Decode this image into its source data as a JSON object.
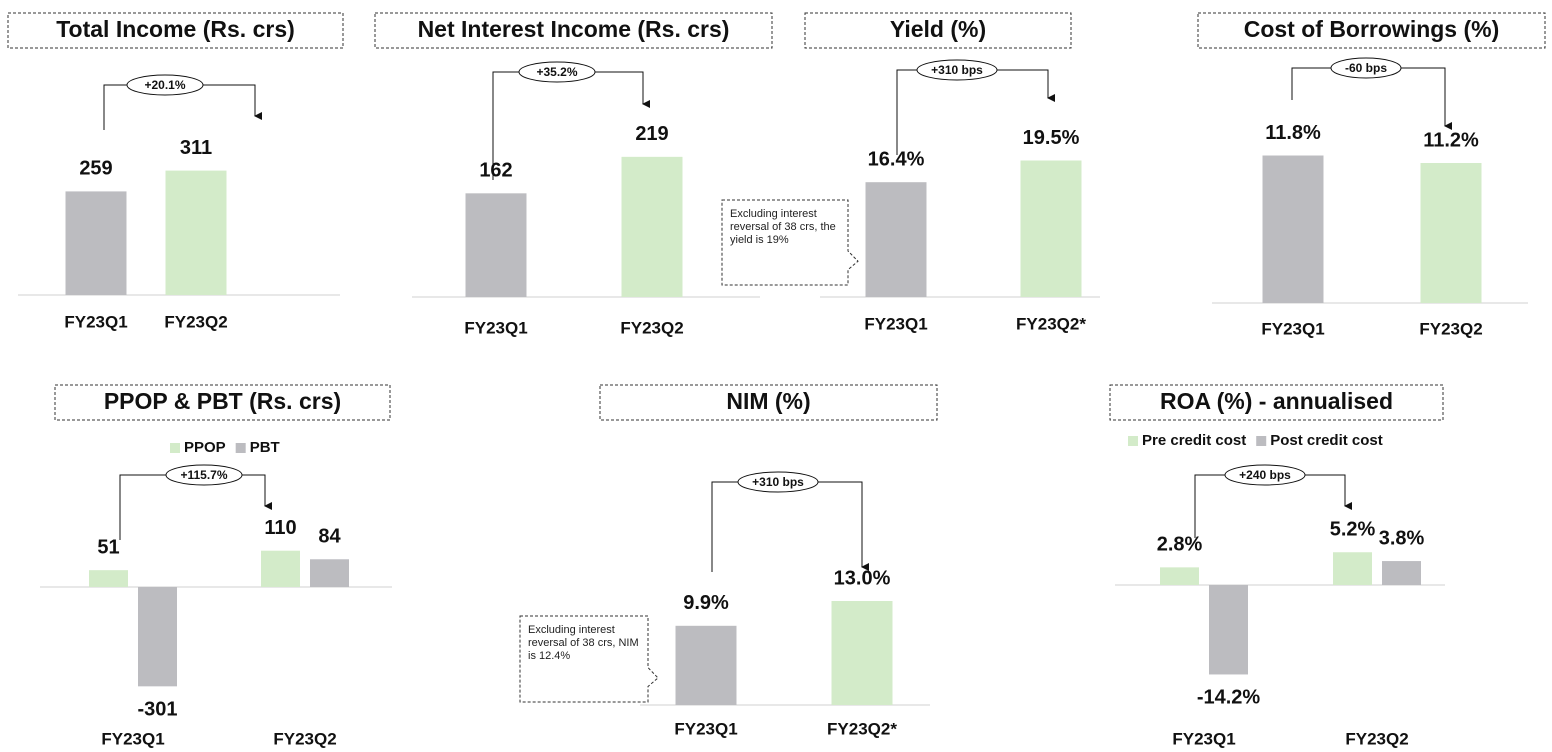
{
  "chart_data": [
    {
      "type": "bar",
      "title": "Total Income (Rs. crs)",
      "categories": [
        "FY23Q1",
        "FY23Q2"
      ],
      "series": [
        {
          "values": [
            259,
            311
          ],
          "colors": [
            "#bcbcc0",
            "#d3ebc9"
          ]
        }
      ],
      "change_label": "+20.1%"
    },
    {
      "type": "bar",
      "title": "Net Interest Income (Rs. crs)",
      "categories": [
        "FY23Q1",
        "FY23Q2"
      ],
      "series": [
        {
          "values": [
            162,
            219
          ],
          "colors": [
            "#bcbcc0",
            "#d3ebc9"
          ]
        }
      ],
      "change_label": "+35.2%"
    },
    {
      "type": "bar",
      "title": "Yield (%)",
      "categories": [
        "FY23Q1",
        "FY23Q2*"
      ],
      "series": [
        {
          "values": [
            16.4,
            19.5
          ],
          "value_labels": [
            "16.4%",
            "19.5%"
          ],
          "colors": [
            "#bcbcc0",
            "#d3ebc9"
          ]
        }
      ],
      "change_label": "+310 bps",
      "note": "Excluding interest reversal of 38 crs, the yield is 19%"
    },
    {
      "type": "bar",
      "title": "Cost of Borrowings (%)",
      "categories": [
        "FY23Q1",
        "FY23Q2"
      ],
      "series": [
        {
          "values": [
            11.8,
            11.2
          ],
          "value_labels": [
            "11.8%",
            "11.2%"
          ],
          "colors": [
            "#bcbcc0",
            "#d3ebc9"
          ]
        }
      ],
      "change_label": "-60 bps"
    },
    {
      "type": "bar",
      "title": "PPOP & PBT (Rs. crs)",
      "categories": [
        "FY23Q1",
        "FY23Q2"
      ],
      "series": [
        {
          "name": "PPOP",
          "color": "#d3ebc9",
          "values": [
            51,
            110
          ]
        },
        {
          "name": "PBT",
          "color": "#bcbcc0",
          "values": [
            -301,
            84
          ]
        }
      ],
      "change_label": "+115.7%"
    },
    {
      "type": "bar",
      "title": "NIM (%)",
      "categories": [
        "FY23Q1",
        "FY23Q2*"
      ],
      "series": [
        {
          "values": [
            9.9,
            13.0
          ],
          "value_labels": [
            "9.9%",
            "13.0%"
          ],
          "colors": [
            "#bcbcc0",
            "#d3ebc9"
          ]
        }
      ],
      "change_label": "+310 bps",
      "note": "Excluding interest reversal of 38 crs, NIM is 12.4%"
    },
    {
      "type": "bar",
      "title": "ROA (%) - annualised",
      "categories": [
        "FY23Q1",
        "FY23Q2"
      ],
      "series": [
        {
          "name": "Pre credit cost",
          "color": "#d3ebc9",
          "values": [
            2.8,
            5.2
          ],
          "value_labels": [
            "2.8%",
            "5.2%"
          ]
        },
        {
          "name": "Post credit cost",
          "color": "#bcbcc0",
          "values": [
            -14.2,
            3.8
          ],
          "value_labels": [
            "-14.2%",
            "3.8%"
          ]
        }
      ],
      "change_label": "+240 bps"
    }
  ]
}
